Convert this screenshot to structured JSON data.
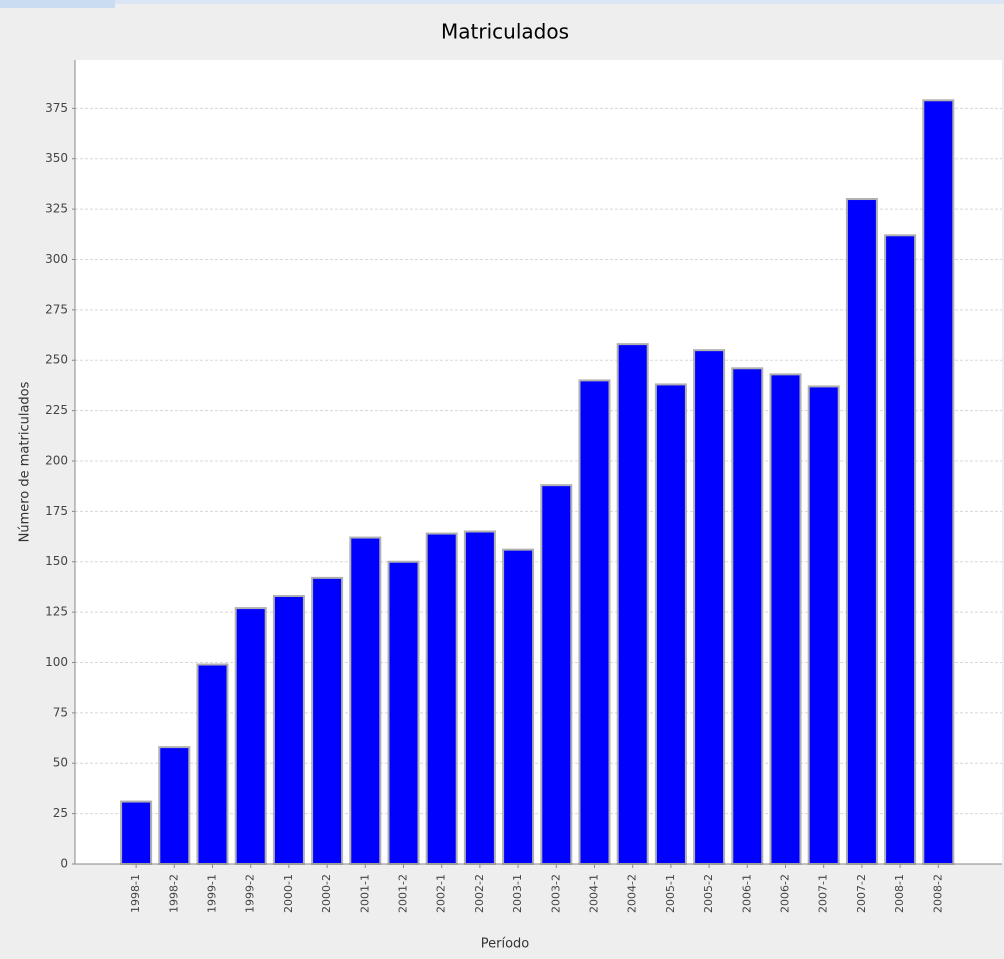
{
  "chart_data": {
    "type": "bar",
    "title": "Matriculados",
    "x_label": "Período",
    "y_label": "Número de matriculados",
    "categories": [
      "1998-1",
      "1998-2",
      "1999-1",
      "1999-2",
      "2000-1",
      "2000-2",
      "2001-1",
      "2001-2",
      "2002-1",
      "2002-2",
      "2003-1",
      "2003-2",
      "2004-1",
      "2004-2",
      "2005-1",
      "2005-2",
      "2006-1",
      "2006-2",
      "2007-1",
      "2007-2",
      "2008-1",
      "2008-2"
    ],
    "values": [
      31,
      58,
      99,
      127,
      133,
      142,
      162,
      150,
      164,
      165,
      156,
      188,
      240,
      258,
      238,
      255,
      246,
      243,
      237,
      330,
      312,
      379
    ],
    "color": "#0000ff",
    "ylim": [
      0,
      399
    ],
    "yticks": [
      0,
      25,
      50,
      75,
      100,
      125,
      150,
      175,
      200,
      225,
      250,
      275,
      300,
      325,
      350,
      375
    ],
    "grid": true
  }
}
